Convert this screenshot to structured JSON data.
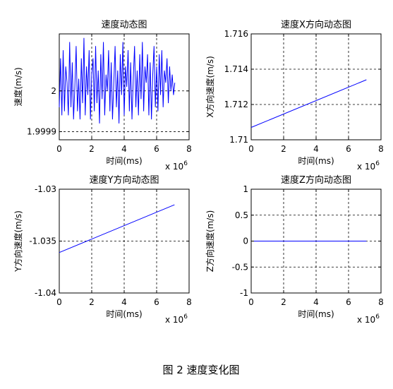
{
  "figure_caption": "图 2  速度变化图",
  "chart_data": [
    {
      "type": "line",
      "title": "速度动态图",
      "xlabel": "时间(ms)",
      "ylabel": "速度(m/s)",
      "x_multiplier_base": "x 10",
      "x_multiplier_exp": "6",
      "xlim": [
        0,
        8
      ],
      "ylim": [
        1.99988,
        2.00014
      ],
      "xticks": [
        0,
        2,
        4,
        6,
        8
      ],
      "xtick_labels": [
        "0",
        "2",
        "4",
        "6",
        "8"
      ],
      "yticks": [
        1.9999,
        2.0
      ],
      "ytick_labels": [
        "1.9999",
        "2"
      ],
      "grid": true,
      "series": [
        {
          "color": "#0000ff",
          "x": [
            0,
            0.08,
            0.16,
            0.24,
            0.32,
            0.4,
            0.48,
            0.56,
            0.64,
            0.72,
            0.8,
            0.88,
            0.96,
            1.04,
            1.12,
            1.2,
            1.28,
            1.36,
            1.44,
            1.52,
            1.6,
            1.68,
            1.76,
            1.84,
            1.92,
            2.0,
            2.08,
            2.16,
            2.24,
            2.32,
            2.4,
            2.48,
            2.56,
            2.64,
            2.72,
            2.8,
            2.88,
            2.96,
            3.04,
            3.12,
            3.2,
            3.28,
            3.36,
            3.44,
            3.52,
            3.6,
            3.68,
            3.76,
            3.84,
            3.92,
            4.0,
            4.08,
            4.16,
            4.24,
            4.32,
            4.4,
            4.48,
            4.56,
            4.64,
            4.72,
            4.8,
            4.88,
            4.96,
            5.04,
            5.12,
            5.2,
            5.28,
            5.36,
            5.44,
            5.52,
            5.6,
            5.68,
            5.76,
            5.84,
            5.92,
            6.0,
            6.08,
            6.16,
            6.24,
            6.32,
            6.4,
            6.48,
            6.56,
            6.64,
            6.72,
            6.8,
            6.88,
            6.96,
            7.04,
            7.12
          ],
          "y": [
            1.99996,
            2.00008,
            1.99994,
            2.0001,
            1.99995,
            2.00006,
            2.00002,
            1.99994,
            2.00012,
            1.99996,
            2.00007,
            1.99993,
            2.00001,
            2.00011,
            1.99995,
            2.00003,
            1.99993,
            2.00008,
            1.99997,
            2.00013,
            1.99994,
            2.00006,
            1.99999,
            2.0001,
            1.99993,
            2.00004,
            2.00008,
            1.99995,
            2.00011,
            1.99997,
            2.00005,
            1.99992,
            2.00009,
            1.99998,
            2.00012,
            1.99994,
            2.00004,
            2.0,
            2.0001,
            1.99995,
            2.00007,
            1.99993,
            2.00002,
            2.00011,
            1.99996,
            2.00005,
            1.99992,
            2.00009,
            1.99999,
            2.00012,
            1.99994,
            2.00006,
            2.00001,
            2.0001,
            1.99995,
            2.00007,
            1.99993,
            2.00003,
            2.00011,
            1.99996,
            2.00005,
            1.99994,
            2.00009,
            1.99998,
            2.00012,
            1.99995,
            2.00006,
            2.00002,
            2.00009,
            1.99994,
            2.00007,
            1.99993,
            2.00004,
            2.00011,
            1.99996,
            2.00006,
            1.99995,
            2.00009,
            1.99999,
            2.0001,
            1.99996,
            2.00005,
            2.00002,
            2.00008,
            1.99997,
            2.00006,
            2.0,
            2.00004,
            1.99999,
            2.00002
          ]
        }
      ]
    },
    {
      "type": "line",
      "title": "速度X方向动态图",
      "xlabel": "时间(ms)",
      "ylabel": "X方向速度(m/s)",
      "x_multiplier_base": "x 10",
      "x_multiplier_exp": "6",
      "xlim": [
        0,
        8
      ],
      "ylim": [
        1.71,
        1.716
      ],
      "xticks": [
        0,
        2,
        4,
        6,
        8
      ],
      "xtick_labels": [
        "0",
        "2",
        "4",
        "6",
        "8"
      ],
      "yticks": [
        1.71,
        1.712,
        1.714,
        1.716
      ],
      "ytick_labels": [
        "1.71",
        "1.712",
        "1.714",
        "1.716"
      ],
      "grid": true,
      "series": [
        {
          "color": "#0000ff",
          "x": [
            0,
            7.1
          ],
          "y": [
            1.7107,
            1.7134
          ]
        }
      ]
    },
    {
      "type": "line",
      "title": "速度Y方向动态图",
      "xlabel": "时间(ms)",
      "ylabel": "Y方向速度(m/s)",
      "x_multiplier_base": "x 10",
      "x_multiplier_exp": "6",
      "xlim": [
        0,
        8
      ],
      "ylim": [
        -1.04,
        -1.03
      ],
      "xticks": [
        0,
        2,
        4,
        6,
        8
      ],
      "xtick_labels": [
        "0",
        "2",
        "4",
        "6",
        "8"
      ],
      "yticks": [
        -1.04,
        -1.035,
        -1.03
      ],
      "ytick_labels": [
        "-1.04",
        "-1.035",
        "-1.03"
      ],
      "grid": true,
      "series": [
        {
          "color": "#0000ff",
          "x": [
            0,
            7.1
          ],
          "y": [
            -1.0361,
            -1.0315
          ]
        }
      ]
    },
    {
      "type": "line",
      "title": "速度Z方向动态图",
      "xlabel": "时间(ms)",
      "ylabel": "Z方向速度(m/s)",
      "x_multiplier_base": "x 10",
      "x_multiplier_exp": "6",
      "xlim": [
        0,
        8
      ],
      "ylim": [
        -1,
        1
      ],
      "xticks": [
        0,
        2,
        4,
        6,
        8
      ],
      "xtick_labels": [
        "0",
        "2",
        "4",
        "6",
        "8"
      ],
      "yticks": [
        -1,
        -0.5,
        0,
        0.5,
        1
      ],
      "ytick_labels": [
        "-1",
        "-0.5",
        "0",
        "0.5",
        "1"
      ],
      "grid": true,
      "series": [
        {
          "color": "#0000ff",
          "x": [
            0,
            7.1
          ],
          "y": [
            0,
            0
          ]
        }
      ]
    }
  ]
}
